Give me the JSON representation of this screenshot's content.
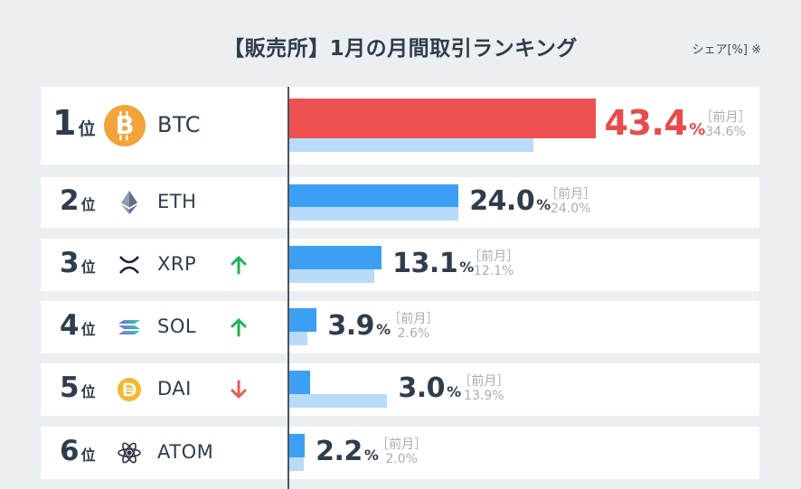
{
  "title": "【販売所】1月の月間取引ランキング",
  "note": "シェア[%] ※",
  "prev_label": "［前月］",
  "percent_unit": "%",
  "rank_unit": "位",
  "colors": {
    "top_bar": "#ef5151",
    "bar": "#3d9ff4",
    "prev_bar": "#b7dbf8",
    "up": "#1fb25a",
    "down": "#e85c56"
  },
  "chart_data": {
    "type": "bar",
    "orientation": "horizontal",
    "title": "【販売所】1月の月間取引ランキング",
    "unit": "%",
    "categories": [
      "BTC",
      "ETH",
      "XRP",
      "SOL",
      "DAI",
      "ATOM"
    ],
    "series": [
      {
        "name": "",
        "values": [
          43.4,
          24.0,
          13.1,
          3.9,
          3.0,
          2.2
        ]
      },
      {
        "name": "前月",
        "values": [
          34.6,
          24.0,
          12.1,
          2.6,
          13.9,
          2.0
        ]
      }
    ],
    "rows": [
      {
        "rank": "1",
        "symbol": "BTC",
        "icon": "bitcoin-icon",
        "trend": "none",
        "value": "43.4",
        "prev": "34.6%"
      },
      {
        "rank": "2",
        "symbol": "ETH",
        "icon": "ethereum-icon",
        "trend": "none",
        "value": "24.0",
        "prev": "24.0%"
      },
      {
        "rank": "3",
        "symbol": "XRP",
        "icon": "xrp-icon",
        "trend": "up",
        "value": "13.1",
        "prev": "12.1%"
      },
      {
        "rank": "4",
        "symbol": "SOL",
        "icon": "solana-icon",
        "trend": "up",
        "value": "3.9",
        "prev": "2.6%"
      },
      {
        "rank": "5",
        "symbol": "DAI",
        "icon": "dai-icon",
        "trend": "down",
        "value": "3.0",
        "prev": "13.9%"
      },
      {
        "rank": "6",
        "symbol": "ATOM",
        "icon": "cosmos-icon",
        "trend": "none",
        "value": "2.2",
        "prev": "2.0%"
      }
    ]
  }
}
